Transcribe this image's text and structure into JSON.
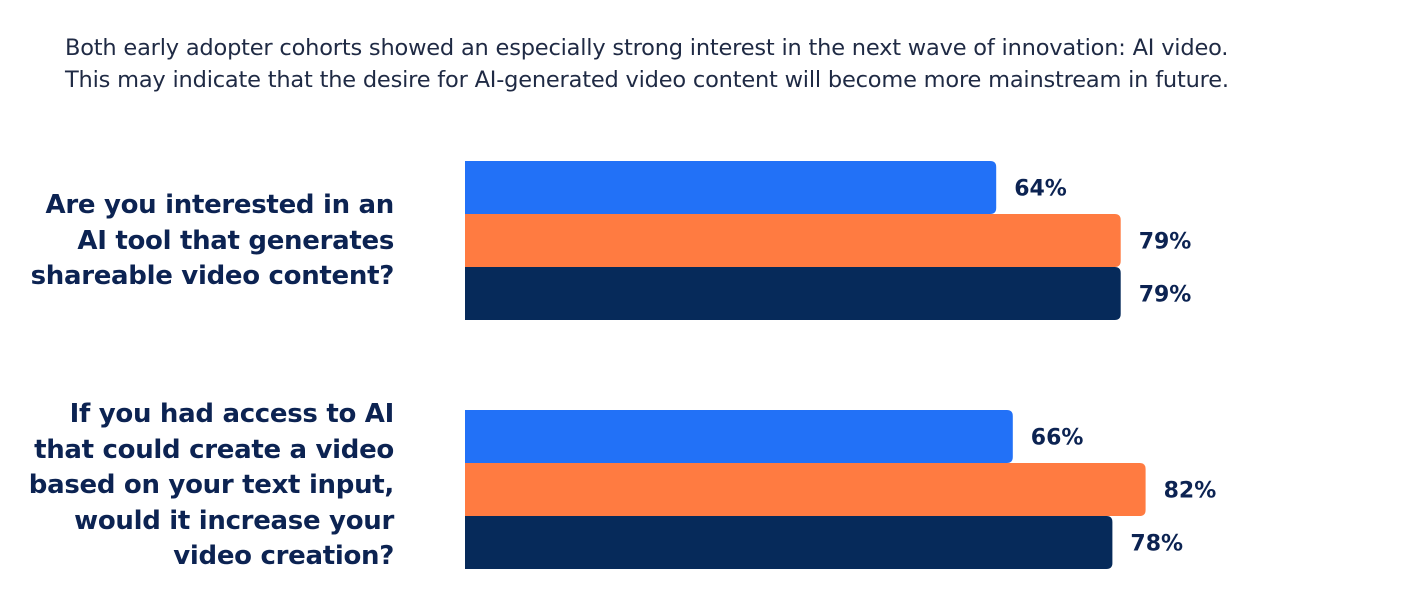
{
  "intro": {
    "line1": "Both early adopter cohorts showed an especially strong interest in the next wave of innovation: AI video.",
    "line2": "This may indicate that the desire for AI-generated video content will become more mainstream in future."
  },
  "colors": {
    "series_1": "#2271f7",
    "series_2": "#ff7b41",
    "series_3": "#062a5a",
    "text_dark": "#0c2352",
    "text_body": "#1f2a44"
  },
  "chart_data": {
    "type": "bar",
    "orientation": "horizontal",
    "title": "",
    "xlabel": "",
    "ylabel": "",
    "xlim": [
      0,
      100
    ],
    "grid": false,
    "legend": "none",
    "value_format": "{v}%",
    "categories": [
      {
        "lines": [
          "Are you interested in an",
          "AI tool that generates",
          "shareable video content?"
        ]
      },
      {
        "lines": [
          "If you had access to AI",
          "that could create a video",
          "based on your text input,",
          "would it increase your",
          "video creation?"
        ]
      }
    ],
    "series": [
      {
        "color": "#2271f7",
        "values": [
          64,
          66
        ]
      },
      {
        "color": "#ff7b41",
        "values": [
          79,
          82
        ]
      },
      {
        "color": "#062a5a",
        "values": [
          79,
          78
        ]
      }
    ],
    "value_labels": [
      [
        "64%",
        "66%"
      ],
      [
        "79%",
        "82%"
      ],
      [
        "79%",
        "78%"
      ]
    ]
  }
}
